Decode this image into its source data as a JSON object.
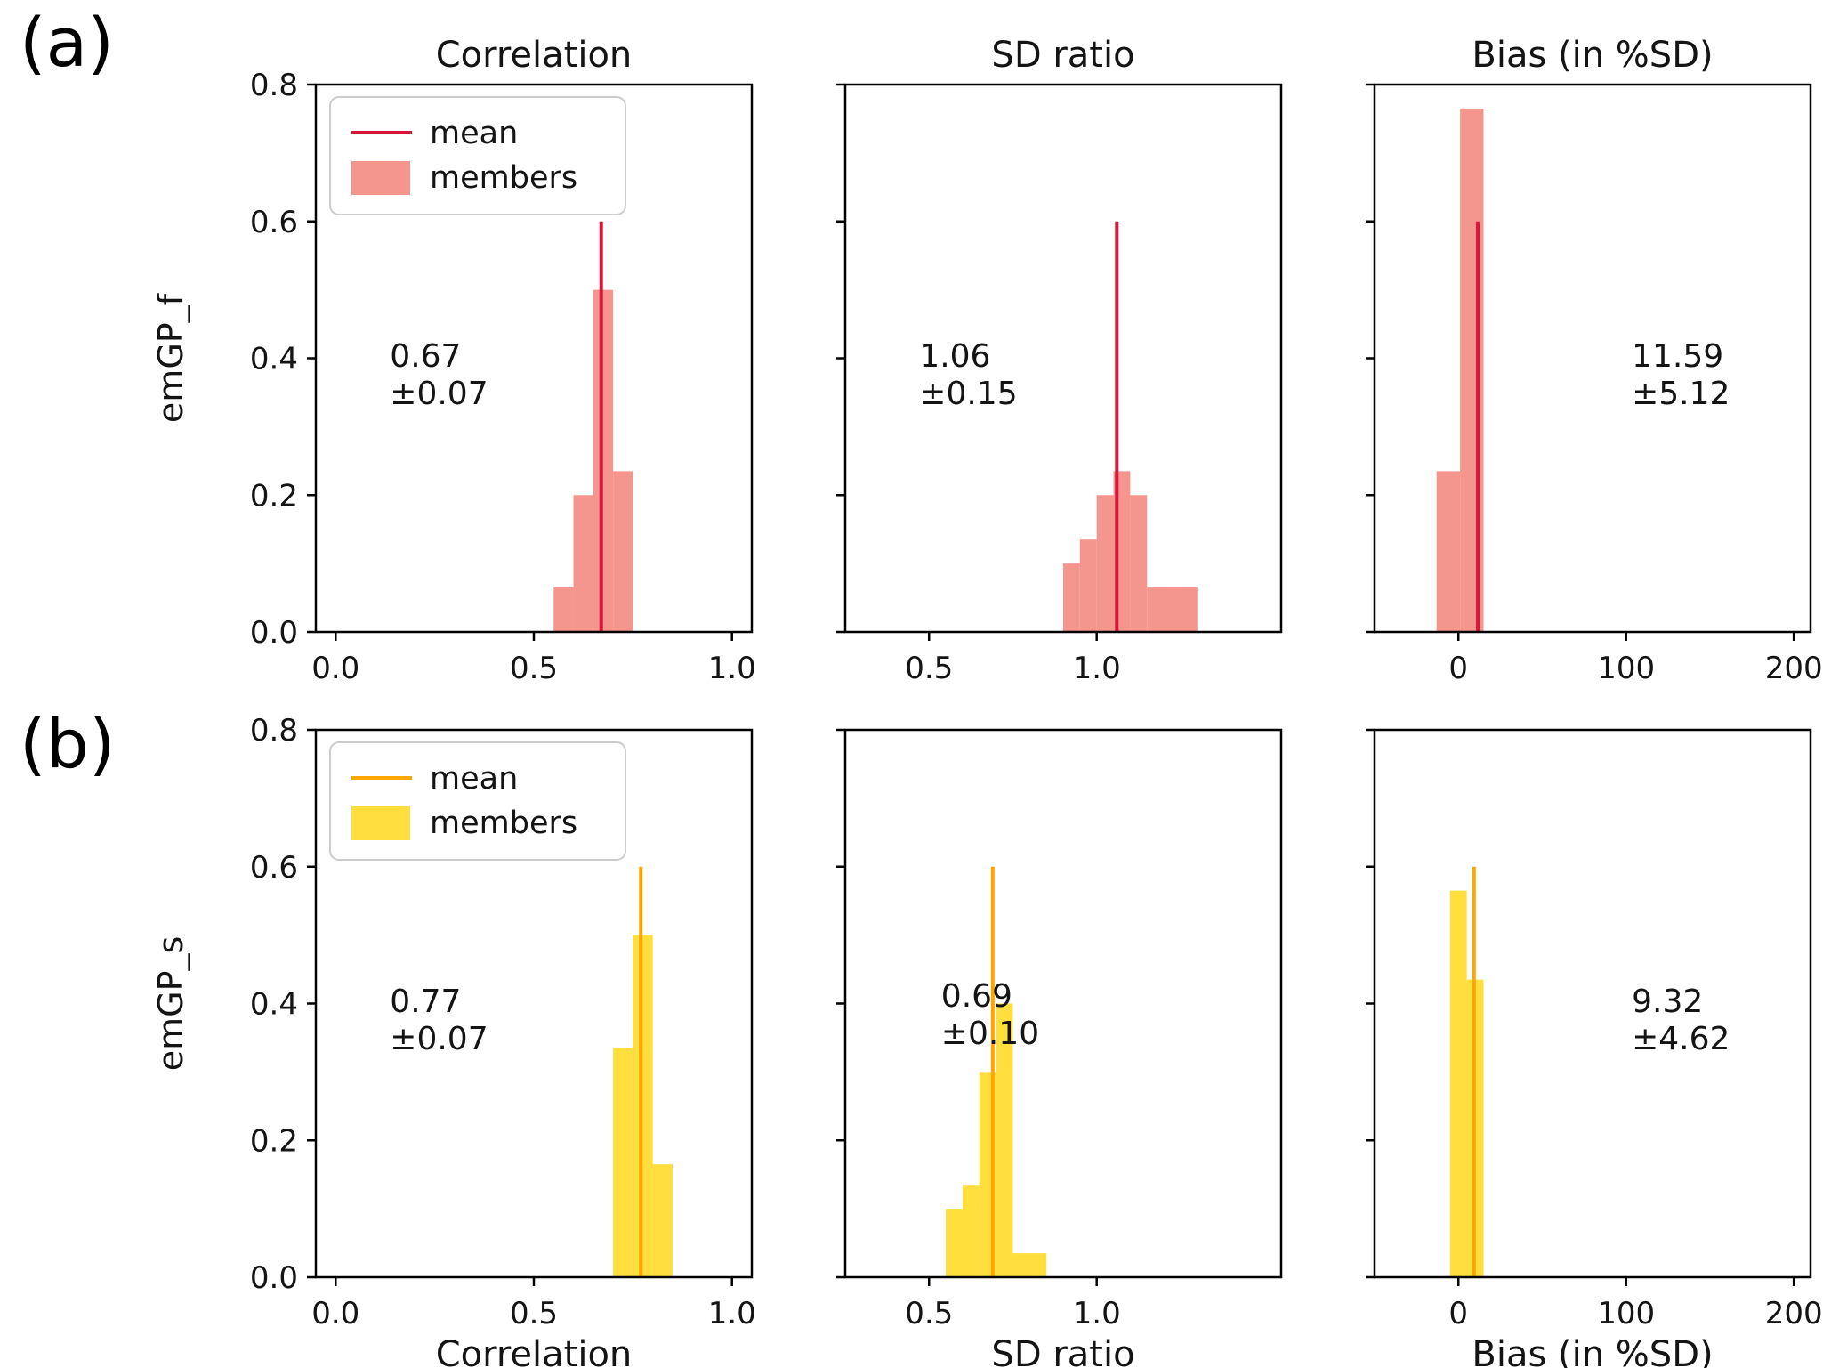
{
  "figure": {
    "panel_label_a": "(a)",
    "panel_label_b": "(b)",
    "background": "#ffffff"
  },
  "legend": {
    "mean_label": "mean",
    "members_label": "members",
    "position": "upper left"
  },
  "rows": [
    {
      "name": "emGP_f",
      "mean_line_color": "#dc143c",
      "fill_color": "#f5968e"
    },
    {
      "name": "emGP_s",
      "mean_line_color": "#ffa500",
      "fill_color": "#ffde3d"
    }
  ],
  "chart_data": [
    {
      "id": "a-correlation",
      "type": "bar",
      "row": 0,
      "col": 0,
      "title": "Correlation",
      "xlabel": null,
      "ylabel": "emGP_f",
      "xlim": [
        -0.05,
        1.05
      ],
      "ylim": [
        0,
        0.8
      ],
      "xticks": [
        0.0,
        0.5,
        1.0
      ],
      "xtick_labels": [
        "0.0",
        "0.5",
        "1.0"
      ],
      "yticks": [
        0.0,
        0.2,
        0.4,
        0.6,
        0.8
      ],
      "ytick_labels": [
        "0.0",
        "0.2",
        "0.4",
        "0.6",
        "0.8"
      ],
      "show_ytick_labels": true,
      "grid": false,
      "bars": [
        [
          0.55,
          0.6,
          0.065
        ],
        [
          0.6,
          0.65,
          0.2
        ],
        [
          0.65,
          0.7,
          0.5
        ],
        [
          0.7,
          0.75,
          0.235
        ]
      ],
      "mean": 0.67,
      "mean_line_top": 0.6,
      "stat_lines": [
        "0.67",
        "±0.07"
      ],
      "stat_pos": [
        0.17,
        0.46
      ],
      "line_color": "#dc143c",
      "fill_color": "#f5968e",
      "legend": true
    },
    {
      "id": "a-sd-ratio",
      "type": "bar",
      "row": 0,
      "col": 1,
      "title": "SD ratio",
      "xlabel": null,
      "ylabel": null,
      "xlim": [
        0.25,
        1.55
      ],
      "ylim": [
        0,
        0.8
      ],
      "xticks": [
        0.5,
        1.0
      ],
      "xtick_labels": [
        "0.5",
        "1.0"
      ],
      "yticks": [
        0.0,
        0.2,
        0.4,
        0.6,
        0.8
      ],
      "ytick_labels": [
        "0.0",
        "0.2",
        "0.4",
        "0.6",
        "0.8"
      ],
      "show_ytick_labels": false,
      "grid": false,
      "bars": [
        [
          0.9,
          0.95,
          0.1
        ],
        [
          0.95,
          1.0,
          0.135
        ],
        [
          1.0,
          1.05,
          0.2
        ],
        [
          1.05,
          1.1,
          0.235
        ],
        [
          1.1,
          1.15,
          0.2
        ],
        [
          1.15,
          1.3,
          0.065
        ]
      ],
      "mean": 1.06,
      "mean_line_top": 0.6,
      "stat_lines": [
        "1.06",
        "±0.15"
      ],
      "stat_pos": [
        0.17,
        0.46
      ],
      "line_color": "#dc143c",
      "fill_color": "#f5968e",
      "legend": false
    },
    {
      "id": "a-bias",
      "type": "bar",
      "row": 0,
      "col": 2,
      "title": "Bias  (in %SD)",
      "xlabel": null,
      "ylabel": null,
      "xlim": [
        -50,
        210
      ],
      "ylim": [
        0,
        0.8
      ],
      "xticks": [
        0,
        100,
        200
      ],
      "xtick_labels": [
        "0",
        "100",
        "200"
      ],
      "yticks": [
        0.0,
        0.2,
        0.4,
        0.6,
        0.8
      ],
      "ytick_labels": [
        "0.0",
        "0.2",
        "0.4",
        "0.6",
        "0.8"
      ],
      "show_ytick_labels": false,
      "grid": false,
      "bars": [
        [
          -13,
          1,
          0.235
        ],
        [
          1,
          15,
          0.765
        ]
      ],
      "mean": 11.59,
      "mean_line_top": 0.6,
      "stat_lines": [
        "11.59",
        "±5.12"
      ],
      "stat_pos": [
        0.59,
        0.46
      ],
      "line_color": "#dc143c",
      "fill_color": "#f5968e",
      "legend": false
    },
    {
      "id": "b-correlation",
      "type": "bar",
      "row": 1,
      "col": 0,
      "title": null,
      "xlabel": "Correlation",
      "ylabel": "emGP_s",
      "xlim": [
        -0.05,
        1.05
      ],
      "ylim": [
        0,
        0.8
      ],
      "xticks": [
        0.0,
        0.5,
        1.0
      ],
      "xtick_labels": [
        "0.0",
        "0.5",
        "1.0"
      ],
      "yticks": [
        0.0,
        0.2,
        0.4,
        0.6,
        0.8
      ],
      "ytick_labels": [
        "0.0",
        "0.2",
        "0.4",
        "0.6",
        "0.8"
      ],
      "show_ytick_labels": true,
      "grid": false,
      "bars": [
        [
          0.7,
          0.75,
          0.335
        ],
        [
          0.75,
          0.8,
          0.5
        ],
        [
          0.8,
          0.85,
          0.165
        ]
      ],
      "mean": 0.77,
      "mean_line_top": 0.6,
      "stat_lines": [
        "0.77",
        "±0.07"
      ],
      "stat_pos": [
        0.17,
        0.46
      ],
      "line_color": "#ffa500",
      "fill_color": "#ffde3d",
      "legend": true
    },
    {
      "id": "b-sd-ratio",
      "type": "bar",
      "row": 1,
      "col": 1,
      "title": null,
      "xlabel": "SD ratio",
      "ylabel": null,
      "xlim": [
        0.25,
        1.55
      ],
      "ylim": [
        0,
        0.8
      ],
      "xticks": [
        0.5,
        1.0
      ],
      "xtick_labels": [
        "0.5",
        "1.0"
      ],
      "yticks": [
        0.0,
        0.2,
        0.4,
        0.6,
        0.8
      ],
      "ytick_labels": [
        "0.0",
        "0.2",
        "0.4",
        "0.6",
        "0.8"
      ],
      "show_ytick_labels": false,
      "grid": false,
      "bars": [
        [
          0.55,
          0.6,
          0.1
        ],
        [
          0.6,
          0.65,
          0.135
        ],
        [
          0.65,
          0.7,
          0.3
        ],
        [
          0.7,
          0.75,
          0.4
        ],
        [
          0.75,
          0.85,
          0.035
        ]
      ],
      "mean": 0.69,
      "mean_line_top": 0.6,
      "stat_lines": [
        "0.69",
        "±0.10"
      ],
      "stat_pos": [
        0.22,
        0.45
      ],
      "line_color": "#ffa500",
      "fill_color": "#ffde3d",
      "legend": false
    },
    {
      "id": "b-bias",
      "type": "bar",
      "row": 1,
      "col": 2,
      "title": null,
      "xlabel": "Bias  (in %SD)",
      "ylabel": null,
      "xlim": [
        -50,
        210
      ],
      "ylim": [
        0,
        0.8
      ],
      "xticks": [
        0,
        100,
        200
      ],
      "xtick_labels": [
        "0",
        "100",
        "200"
      ],
      "yticks": [
        0.0,
        0.2,
        0.4,
        0.6,
        0.8
      ],
      "ytick_labels": [
        "0.0",
        "0.2",
        "0.4",
        "0.6",
        "0.8"
      ],
      "show_ytick_labels": false,
      "grid": false,
      "bars": [
        [
          -5,
          5,
          0.565
        ],
        [
          5,
          15,
          0.435
        ]
      ],
      "mean": 9.32,
      "mean_line_top": 0.6,
      "stat_lines": [
        "9.32",
        "±4.62"
      ],
      "stat_pos": [
        0.59,
        0.46
      ],
      "line_color": "#ffa500",
      "fill_color": "#ffde3d",
      "legend": false
    }
  ]
}
